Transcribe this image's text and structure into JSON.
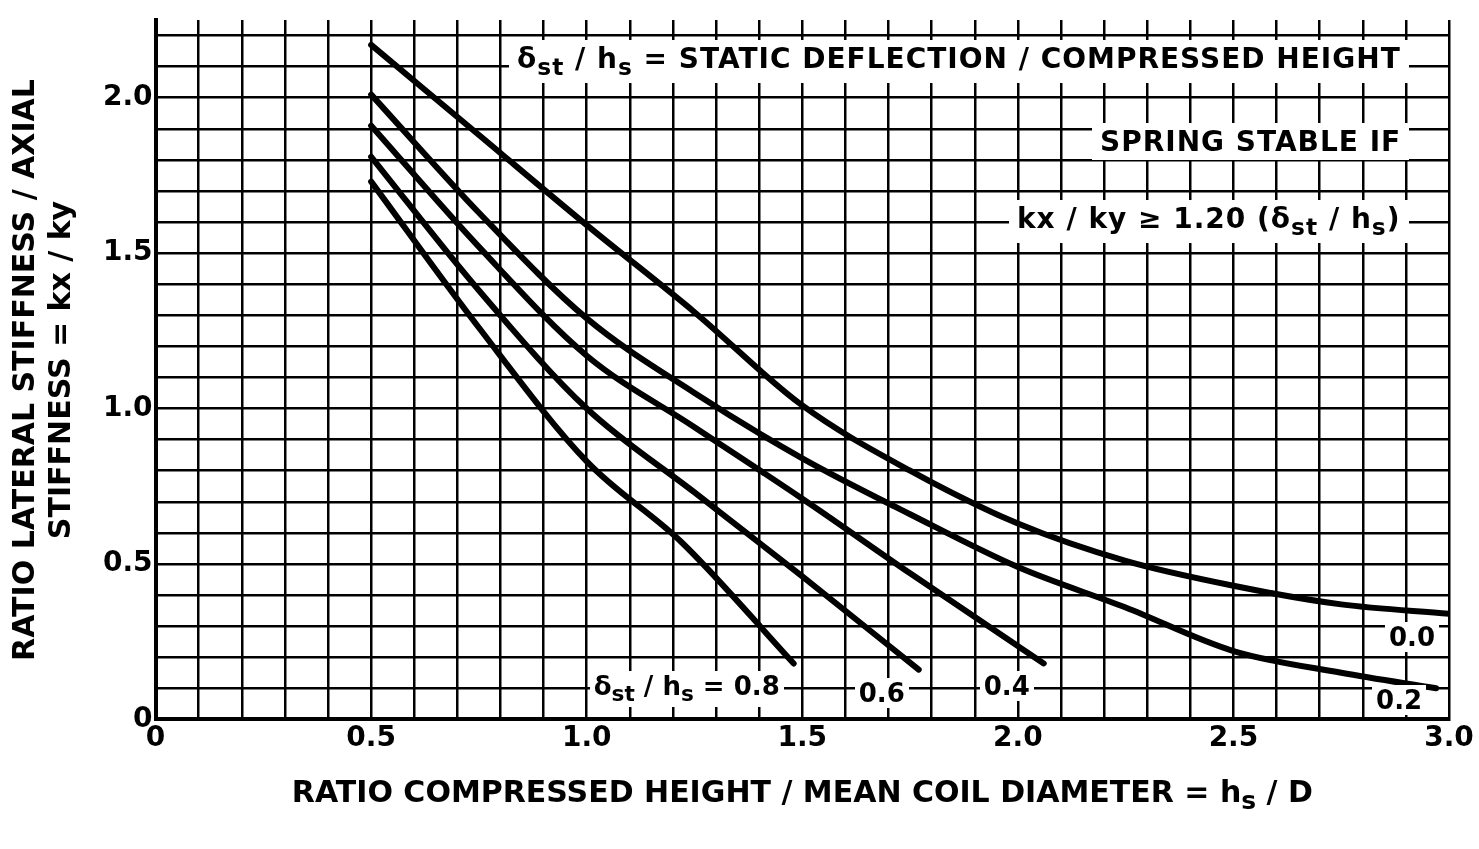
{
  "chart_data": {
    "type": "line",
    "xlabel": "RATIO COMPRESSED HEIGHT / MEAN COIL DIAMETER = h$_{s}$ / D",
    "ylabel": "RATIO LATERAL STIFFNESS / AXIAL STIFFNESS = kx / ky",
    "xlim": [
      0,
      3.0
    ],
    "ylim": [
      0,
      2.25
    ],
    "xticks": [
      0,
      {
        "value": 0.1,
        "label": null
      },
      {
        "value": 0.2,
        "label": null
      },
      {
        "value": 0.3,
        "label": null
      },
      {
        "value": 0.4,
        "label": null
      },
      {
        "value": 0.5,
        "label": "0.5"
      },
      {
        "value": 0.6,
        "label": null
      },
      {
        "value": 0.7,
        "label": null
      },
      {
        "value": 0.8,
        "label": null
      },
      {
        "value": 0.9,
        "label": null
      },
      {
        "value": 1.0,
        "label": "1.0"
      },
      {
        "value": 1.1,
        "label": null
      },
      {
        "value": 1.2,
        "label": null
      },
      {
        "value": 1.3,
        "label": null
      },
      {
        "value": 1.4,
        "label": null
      },
      {
        "value": 1.5,
        "label": "1.5"
      },
      {
        "value": 1.6,
        "label": null
      },
      {
        "value": 1.7,
        "label": null
      },
      {
        "value": 1.8,
        "label": null
      },
      {
        "value": 1.9,
        "label": null
      },
      {
        "value": 2.0,
        "label": "2.0"
      },
      {
        "value": 2.1,
        "label": null
      },
      {
        "value": 2.2,
        "label": null
      },
      {
        "value": 2.3,
        "label": null
      },
      {
        "value": 2.4,
        "label": null
      },
      {
        "value": 2.5,
        "label": "2.5"
      },
      {
        "value": 2.6,
        "label": null
      },
      {
        "value": 2.7,
        "label": null
      },
      {
        "value": 2.8,
        "label": null
      },
      {
        "value": 2.9,
        "label": null
      },
      {
        "value": 3.0,
        "label": "3.0"
      }
    ],
    "yticks": [
      0,
      {
        "value": 0.1,
        "label": null
      },
      {
        "value": 0.2,
        "label": null
      },
      {
        "value": 0.3,
        "label": null
      },
      {
        "value": 0.4,
        "label": null
      },
      {
        "value": 0.5,
        "label": "0.5"
      },
      {
        "value": 0.6,
        "label": null
      },
      {
        "value": 0.7,
        "label": null
      },
      {
        "value": 0.8,
        "label": null
      },
      {
        "value": 0.9,
        "label": null
      },
      {
        "value": 1.0,
        "label": "1.0"
      },
      {
        "value": 1.1,
        "label": null
      },
      {
        "value": 1.2,
        "label": null
      },
      {
        "value": 1.3,
        "label": null
      },
      {
        "value": 1.4,
        "label": null
      },
      {
        "value": 1.5,
        "label": "1.5"
      },
      {
        "value": 1.6,
        "label": null
      },
      {
        "value": 1.7,
        "label": null
      },
      {
        "value": 1.8,
        "label": null
      },
      {
        "value": 1.9,
        "label": null
      },
      {
        "value": 2.0,
        "label": "2.0"
      },
      {
        "value": 2.1,
        "label": null
      },
      {
        "value": 2.2,
        "label": null
      }
    ],
    "grid": true,
    "marker": "none",
    "legend": false,
    "series": [
      {
        "name": "0.0",
        "color": "#000000",
        "x": [
          0.5,
          0.75,
          1.0,
          1.25,
          1.5,
          1.75,
          2.0,
          2.25,
          2.5,
          2.75,
          3.0
        ],
        "values": [
          2.17,
          1.88,
          1.59,
          1.31,
          1.01,
          0.8,
          0.63,
          0.51,
          0.43,
          0.37,
          0.34
        ]
      },
      {
        "name": "0.2",
        "color": "#000000",
        "x": [
          0.5,
          0.75,
          1.0,
          1.25,
          1.5,
          1.75,
          2.0,
          2.25,
          2.5,
          2.75,
          2.97
        ],
        "values": [
          2.01,
          1.63,
          1.29,
          1.05,
          0.84,
          0.66,
          0.49,
          0.36,
          0.22,
          0.15,
          0.1
        ]
      },
      {
        "name": "0.4",
        "color": "#000000",
        "x": [
          0.5,
          0.75,
          1.0,
          1.25,
          1.5,
          1.75,
          2.06
        ],
        "values": [
          1.91,
          1.52,
          1.17,
          0.94,
          0.71,
          0.47,
          0.18
        ]
      },
      {
        "name": "0.6",
        "color": "#000000",
        "x": [
          0.5,
          0.75,
          1.0,
          1.25,
          1.5,
          1.77
        ],
        "values": [
          1.81,
          1.38,
          1.0,
          0.73,
          0.46,
          0.16
        ]
      },
      {
        "name": "δ$_{st}$ / h$_{s}$ = 0.8",
        "color": "#000000",
        "x": [
          0.5,
          0.75,
          1.0,
          1.22,
          1.48
        ],
        "values": [
          1.73,
          1.26,
          0.83,
          0.57,
          0.18
        ]
      }
    ],
    "annotations": [
      "δ$_{st}$ / h$_{s}$ = STATIC DEFLECTION / COMPRESSED HEIGHT",
      "SPRING STABLE IF",
      "kx / ky ≥ 1.20 (δ$_{st}$ / h$_{s}$)"
    ]
  }
}
